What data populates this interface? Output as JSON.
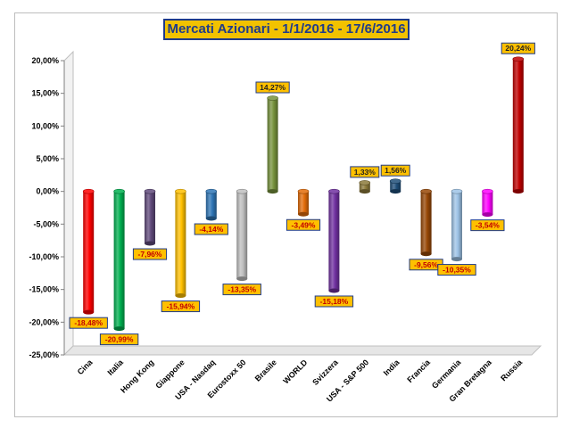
{
  "chart_data": {
    "type": "bar",
    "title": "Mercati Azionari - 1/1/2016 - 17/6/2016",
    "categories": [
      "Cina",
      "Italia",
      "Hong Kong",
      "Giappone",
      "USA - Nasdaq",
      "Eurostoxx 50",
      "Brasile",
      "WORLD",
      "Svizzera",
      "USA - S&P 500",
      "India",
      "Francia",
      "Germania",
      "Gran Bretagna",
      "Russia"
    ],
    "values": [
      -18.48,
      -20.99,
      -7.96,
      -15.94,
      -4.14,
      -13.35,
      14.27,
      -3.49,
      -15.18,
      1.33,
      1.56,
      -9.56,
      -10.35,
      -3.54,
      20.24
    ],
    "data_labels": [
      "-18,48%",
      "-20,99%",
      "-7,96%",
      "-15,94%",
      "-4,14%",
      "-13,35%",
      "14,27%",
      "-3,49%",
      "-15,18%",
      "1,33%",
      "1,56%",
      "-9,56%",
      "-10,35%",
      "-3,54%",
      "20,24%"
    ],
    "colors": [
      "#ff0000",
      "#00b050",
      "#604a7b",
      "#ffc000",
      "#2e75b6",
      "#bfbfbf",
      "#76923c",
      "#e36c09",
      "#7030a0",
      "#8c7a3a",
      "#1f4e79",
      "#974706",
      "#9dc3e6",
      "#ff00ff",
      "#c00000"
    ],
    "ylim": [
      -25,
      20
    ],
    "yticks": [
      -25,
      -20,
      -15,
      -10,
      -5,
      0,
      5,
      10,
      15,
      20
    ],
    "ytick_labels": [
      "-25,00%",
      "-20,00%",
      "-15,00%",
      "-10,00%",
      "-5,00%",
      "0,00%",
      "5,00%",
      "10,00%",
      "15,00%",
      "20,00%"
    ],
    "xlabel": "",
    "ylabel": "",
    "grid": false,
    "legend": "none",
    "label_box_color": "#ffc000",
    "label_text_color": "#c00000"
  }
}
